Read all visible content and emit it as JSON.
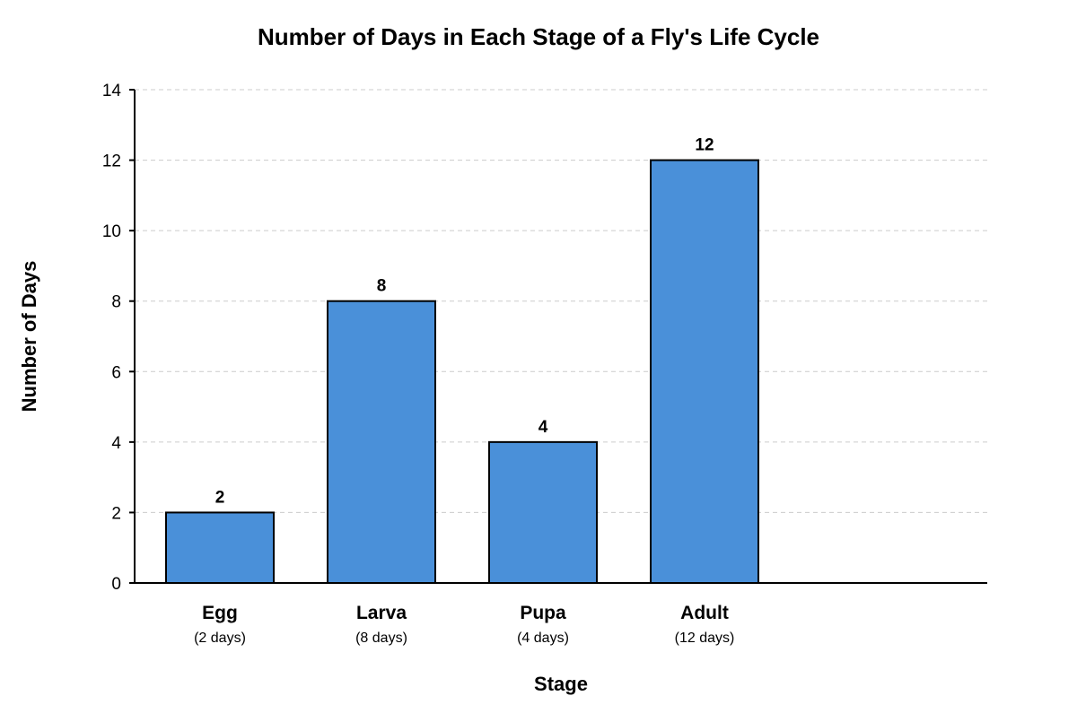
{
  "chart_data": {
    "type": "bar",
    "title": "Number of Days in Each Stage of a Fly's Life Cycle",
    "xlabel": "Stage",
    "ylabel": "Number of Days",
    "categories": [
      "Egg",
      "Larva",
      "Pupa",
      "Adult"
    ],
    "sublabels": [
      "(2 days)",
      "(8 days)",
      "(4 days)",
      "(12 days)"
    ],
    "values": [
      2,
      8,
      4,
      12
    ],
    "data_labels": [
      "2",
      "8",
      "4",
      "12"
    ],
    "ylim": [
      0,
      14
    ],
    "yticks": [
      0,
      2,
      4,
      6,
      8,
      10,
      12,
      14
    ],
    "grid": true,
    "bar_color": "#4a90d9",
    "bar_edge_color": "#000000"
  }
}
